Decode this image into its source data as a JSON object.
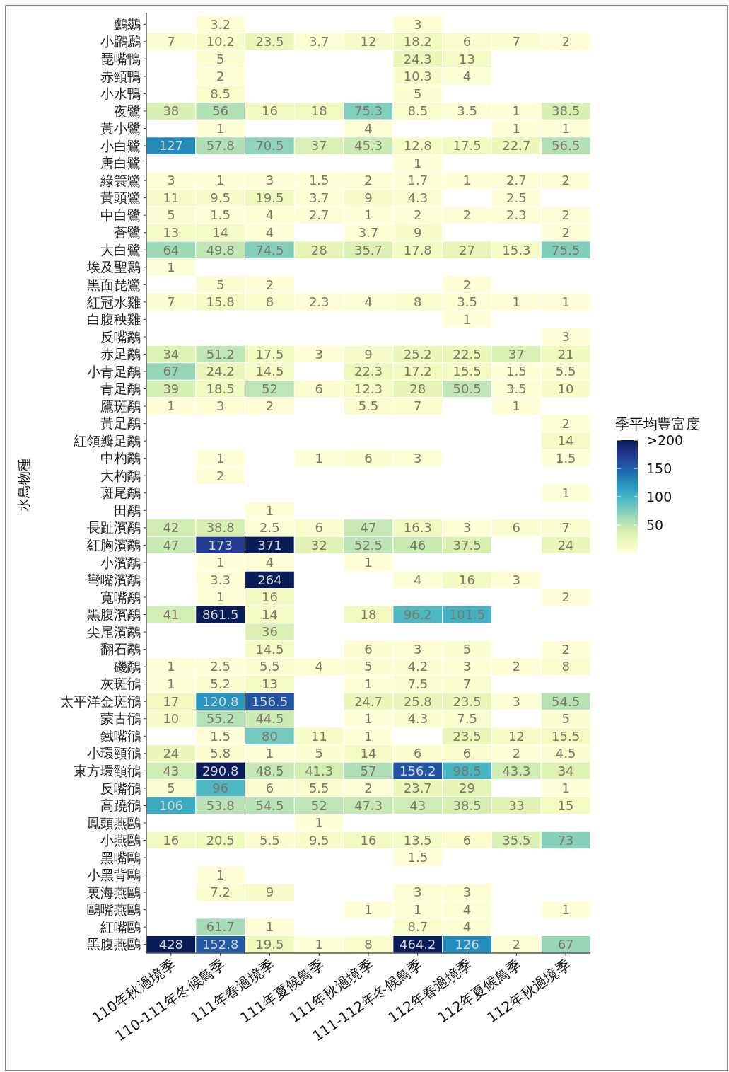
{
  "chart_data": {
    "type": "heatmap",
    "ylabel": "水鳥物種",
    "clabel": "季平均豐富度",
    "categories": [
      "110年秋過境季",
      "110-111年冬候鳥季",
      "111年春過境季",
      "111年夏候鳥季",
      "111年秋過境季",
      "111-112年冬候鳥季",
      "112年春過境季",
      "112年夏候鳥季",
      "112年秋過境季"
    ],
    "y_categories": [
      "鸕鷀",
      "小鸊鷉",
      "琵嘴鴨",
      "赤頸鴨",
      "小水鴨",
      "夜鷺",
      "黃小鷺",
      "小白鷺",
      "唐白鷺",
      "綠簑鷺",
      "黃頭鷺",
      "中白鷺",
      "蒼鷺",
      "大白鷺",
      "埃及聖䴉",
      "黑面琵鷺",
      "紅冠水雞",
      "白腹秧雞",
      "反嘴鷸",
      "赤足鷸",
      "小青足鷸",
      "青足鷸",
      "鷹斑鷸",
      "黃足鷸",
      "紅領瓣足鷸",
      "中杓鷸",
      "大杓鷸",
      "斑尾鷸",
      "田鷸",
      "長趾濱鷸",
      "紅胸濱鷸",
      "小濱鷸",
      "彎嘴濱鷸",
      "寬嘴鷸",
      "黑腹濱鷸",
      "尖尾濱鷸",
      "翻石鷸",
      "磯鷸",
      "灰斑鴴",
      "太平洋金斑鴴",
      "蒙古鴴",
      "鐵嘴鴴",
      "小環頸鴴",
      "東方環頸鴴",
      "反嘴鴴",
      "高蹺鴴",
      "鳳頭燕鷗",
      "小燕鷗",
      "黑嘴鷗",
      "小黑背鷗",
      "裏海燕鷗",
      "鷗嘴燕鷗",
      "紅嘴鷗",
      "黑腹燕鷗"
    ],
    "cells": [
      [
        null,
        3.2,
        null,
        null,
        null,
        3,
        null,
        null,
        null
      ],
      [
        7,
        10.2,
        23.5,
        3.7,
        12,
        18.2,
        6,
        7,
        2
      ],
      [
        null,
        5,
        null,
        null,
        null,
        24.3,
        13,
        null,
        null
      ],
      [
        null,
        2,
        null,
        null,
        null,
        10.3,
        4,
        null,
        null
      ],
      [
        null,
        8.5,
        null,
        null,
        null,
        5,
        null,
        null,
        null
      ],
      [
        38,
        56,
        16,
        18,
        75.3,
        8.5,
        3.5,
        1,
        38.5
      ],
      [
        null,
        1,
        null,
        null,
        4,
        null,
        null,
        1,
        1
      ],
      [
        127,
        57.8,
        70.5,
        37,
        45.3,
        12.8,
        17.5,
        22.7,
        56.5
      ],
      [
        null,
        null,
        null,
        null,
        null,
        1,
        null,
        null,
        null
      ],
      [
        3,
        1,
        3,
        1.5,
        2,
        1.7,
        1,
        2.7,
        2
      ],
      [
        11,
        9.5,
        19.5,
        3.7,
        9,
        4.3,
        null,
        2.5,
        null
      ],
      [
        5,
        1.5,
        4,
        2.7,
        1,
        2,
        2,
        2.3,
        2
      ],
      [
        13,
        14,
        4,
        null,
        3.7,
        9,
        null,
        null,
        2
      ],
      [
        64,
        49.8,
        74.5,
        28,
        35.7,
        17.8,
        27,
        15.3,
        75.5
      ],
      [
        1,
        null,
        null,
        null,
        null,
        null,
        null,
        null,
        null
      ],
      [
        null,
        5,
        2,
        null,
        null,
        null,
        2,
        null,
        null
      ],
      [
        7,
        15.8,
        8,
        2.3,
        4,
        8,
        3.5,
        1,
        1
      ],
      [
        null,
        null,
        null,
        null,
        null,
        null,
        1,
        null,
        null
      ],
      [
        null,
        null,
        null,
        null,
        null,
        null,
        null,
        null,
        3
      ],
      [
        34,
        51.2,
        17.5,
        3,
        9,
        25.2,
        22.5,
        37,
        21
      ],
      [
        67,
        24.2,
        14.5,
        null,
        22.3,
        17.2,
        15.5,
        1.5,
        5.5
      ],
      [
        39,
        18.5,
        52,
        6,
        12.3,
        28,
        50.5,
        3.5,
        10
      ],
      [
        1,
        3,
        2,
        null,
        5.5,
        7,
        null,
        1,
        null
      ],
      [
        null,
        null,
        null,
        null,
        null,
        null,
        null,
        null,
        2
      ],
      [
        null,
        null,
        null,
        null,
        null,
        null,
        null,
        null,
        14
      ],
      [
        null,
        1,
        null,
        1,
        6,
        3,
        null,
        null,
        1.5
      ],
      [
        null,
        2,
        null,
        null,
        null,
        null,
        null,
        null,
        null
      ],
      [
        null,
        null,
        null,
        null,
        null,
        null,
        null,
        null,
        1
      ],
      [
        null,
        null,
        1,
        null,
        null,
        null,
        null,
        null,
        null
      ],
      [
        42,
        38.8,
        2.5,
        6,
        47,
        16.3,
        3,
        6,
        7
      ],
      [
        47,
        173,
        371,
        32,
        52.5,
        46,
        37.5,
        null,
        24
      ],
      [
        null,
        1,
        4,
        null,
        1,
        null,
        null,
        null,
        null
      ],
      [
        null,
        3.3,
        264,
        null,
        null,
        4,
        16,
        3,
        null
      ],
      [
        null,
        1,
        16,
        null,
        null,
        null,
        null,
        null,
        2
      ],
      [
        41,
        861.5,
        14,
        null,
        18,
        96.2,
        101.5,
        null,
        null
      ],
      [
        null,
        null,
        36,
        null,
        null,
        null,
        null,
        null,
        null
      ],
      [
        null,
        null,
        14.5,
        null,
        6,
        3,
        5,
        null,
        2
      ],
      [
        1,
        2.5,
        5.5,
        4,
        5,
        4.2,
        3,
        2,
        8
      ],
      [
        1,
        5.2,
        13,
        null,
        1,
        7.5,
        7,
        null,
        null
      ],
      [
        17,
        120.8,
        156.5,
        null,
        24.7,
        25.8,
        23.5,
        3,
        54.5
      ],
      [
        10,
        55.2,
        44.5,
        null,
        1,
        4.3,
        7.5,
        null,
        5
      ],
      [
        null,
        1.5,
        80,
        11,
        1,
        null,
        23.5,
        12,
        15.5
      ],
      [
        24,
        5.8,
        1,
        5,
        14,
        6,
        6,
        2,
        4.5
      ],
      [
        43,
        290.8,
        48.5,
        41.3,
        57,
        156.2,
        98.5,
        43.3,
        34
      ],
      [
        5,
        96,
        6,
        5.5,
        2,
        23.7,
        29,
        null,
        1
      ],
      [
        106,
        53.8,
        54.5,
        52,
        47.3,
        43,
        38.5,
        33,
        15
      ],
      [
        null,
        null,
        null,
        1,
        null,
        null,
        null,
        null,
        null
      ],
      [
        16,
        20.5,
        5.5,
        9.5,
        16,
        13.5,
        6,
        35.5,
        73
      ],
      [
        null,
        null,
        null,
        null,
        null,
        1.5,
        null,
        null,
        null
      ],
      [
        null,
        1,
        null,
        null,
        null,
        null,
        null,
        null,
        null
      ],
      [
        null,
        7.2,
        9,
        null,
        null,
        3,
        3,
        null,
        null
      ],
      [
        null,
        null,
        null,
        null,
        1,
        1,
        4,
        null,
        1
      ],
      [
        null,
        61.7,
        1,
        null,
        null,
        8.7,
        4,
        null,
        null
      ],
      [
        428,
        152.8,
        19.5,
        1,
        8,
        464.2,
        126,
        2,
        67
      ]
    ],
    "clim": [
      0,
      200
    ],
    "cticks": [
      50,
      100,
      150,
      {
        "value": 200,
        "label": ">200"
      }
    ],
    "data_labels": true
  }
}
